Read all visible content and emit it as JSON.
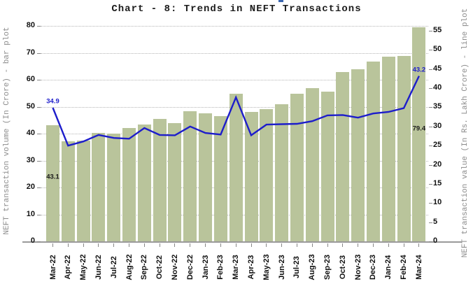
{
  "header": {
    "title": "Chart - 8: Trends in NEFT Transactions"
  },
  "chart_data": {
    "type": "bar",
    "subtype": "combo bar + line, dual axis",
    "title": "Chart - 8: Trends in NEFT Transactions",
    "categories": [
      "Mar-22",
      "Apr-22",
      "May-22",
      "Jun-22",
      "Jul-22",
      "Aug-22",
      "Sep-22",
      "Oct-22",
      "Nov-22",
      "Dec-22",
      "Jan-23",
      "Feb-23",
      "Mar-23",
      "Apr-23",
      "May-23",
      "Jun-23",
      "Jul-23",
      "Aug-23",
      "Sep-23",
      "Oct-23",
      "Nov-23",
      "Dec-23",
      "Jan-24",
      "Feb-24",
      "Mar-24"
    ],
    "series": [
      {
        "name": "NEFT transaction volume (In Crore)",
        "type": "bar",
        "axis": "left",
        "values": [
          43.1,
          37.2,
          37.5,
          40.2,
          40.0,
          42.0,
          43.3,
          45.5,
          43.8,
          48.4,
          47.6,
          46.6,
          54.7,
          48.1,
          49.0,
          50.9,
          54.8,
          56.8,
          55.7,
          62.8,
          63.8,
          66.8,
          68.6,
          68.8,
          79.4
        ]
      },
      {
        "name": "NEFT transaction value (In Rs. Lakh Crore)",
        "type": "line",
        "axis": "right",
        "values": [
          34.9,
          25.0,
          26.1,
          27.8,
          27.0,
          26.8,
          29.6,
          27.8,
          27.7,
          30.0,
          28.3,
          27.9,
          37.6,
          27.7,
          30.5,
          30.6,
          30.7,
          31.4,
          32.9,
          33.0,
          32.3,
          33.4,
          33.8,
          34.8,
          43.2
        ]
      }
    ],
    "left_axis": {
      "label": "NEFT transaction volume (In Crore) - bar plot",
      "min": 0,
      "max": 80,
      "step": 10,
      "ticks": [
        "0",
        "10",
        "20",
        "30",
        "40",
        "50",
        "60",
        "70",
        "80"
      ]
    },
    "right_axis": {
      "label": "NEFT transaction value (In Rs. Lakh Crore) - line plot",
      "min": 0,
      "max": 55,
      "step": 5,
      "ticks": [
        "0",
        "5",
        "10",
        "15",
        "20",
        "25",
        "30",
        "35",
        "40",
        "45",
        "50",
        "55"
      ]
    },
    "annotations": [
      {
        "text": "34.9",
        "series": "line",
        "index": 0,
        "color": "blue"
      },
      {
        "text": "43.1",
        "series": "bar",
        "index": 0,
        "color": "dark",
        "y": 253
      },
      {
        "text": "43.2",
        "series": "line",
        "index": 24,
        "color": "blue"
      },
      {
        "text": "79.4",
        "series": "bar",
        "index": 24,
        "color": "dark",
        "y": 184
      }
    ],
    "grid": "horizontal dotted, left-axis intervals",
    "legend": "none"
  },
  "colors": {
    "bar": "#b9c49b",
    "line": "#1d1dcb",
    "annotation_dark": "#1a1a1a",
    "grid": "#b5b5b5",
    "axis_line": "#9a9a9a",
    "tick_text": "#111111",
    "side_label": "#8c8c8c",
    "title": "#1c1c1c"
  }
}
